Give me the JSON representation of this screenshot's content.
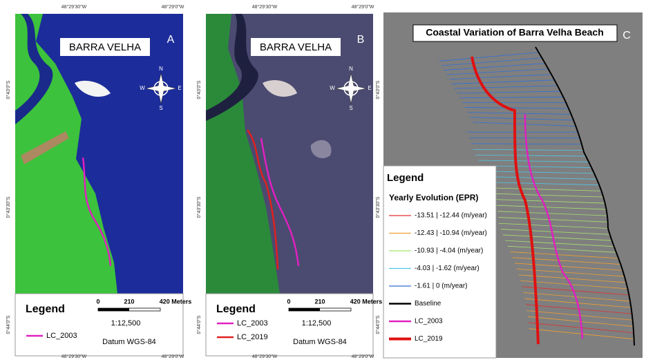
{
  "panels": [
    {
      "label": "A",
      "title": "BARRA VELHA",
      "top_coords": [
        "48°29'30\"W",
        "48°29'0\"W"
      ],
      "bottom_coords": [
        "48°29'30\"W",
        "48°29'0\"W"
      ],
      "left_coords": [
        "0°43'0\"S",
        "0°43'30\"S",
        "0°44'0\"S"
      ],
      "compass": {
        "n": "N",
        "s": "S",
        "e": "E",
        "w": "W"
      },
      "legend": {
        "title": "Legend",
        "items": [
          {
            "name": "LC_2003",
            "color": "#e020c0"
          }
        ]
      },
      "scale": {
        "ticks": [
          "0",
          "210",
          "420 Meters"
        ],
        "ratio": "1:12,500",
        "datum": "Datum WGS-84"
      }
    },
    {
      "label": "B",
      "title": "BARRA VELHA",
      "top_coords": [
        "48°29'30\"W",
        "48°29'0\"W"
      ],
      "bottom_coords": [
        "48°29'30\"W",
        "48°29'0\"W"
      ],
      "left_coords": [
        "0°43'0\"S",
        "0°43'30\"S",
        "0°44'0\"S"
      ],
      "right_coords": [
        "0°43'0\"S",
        "0°43'30\"S",
        "0°44'0\"S"
      ],
      "compass": {
        "n": "N",
        "s": "S",
        "e": "E",
        "w": "W"
      },
      "legend": {
        "title": "Legend",
        "items": [
          {
            "name": "LC_2003",
            "color": "#e020c0"
          },
          {
            "name": "LC_2019",
            "color": "#e02020"
          }
        ]
      },
      "scale": {
        "ticks": [
          "0",
          "210",
          "420 Meters"
        ],
        "ratio": "1:12,500",
        "datum": "Datum WGS-84"
      }
    },
    {
      "label": "C",
      "title": "Coastal Variation of Barra Velha Beach",
      "legend": {
        "title": "Legend",
        "subtitle": "Yearly Evolution (EPR)",
        "items": [
          {
            "name": "-13.51 | -12.44  (m/year)",
            "color": "#e03030"
          },
          {
            "name": "-12.43 | -10.94  (m/year)",
            "color": "#f0a030"
          },
          {
            "name": "-10.93 | -4.04  (m/year)",
            "color": "#a8e070"
          },
          {
            "name": "-4.03 | -1.62  (m/year)",
            "color": "#50c8e8"
          },
          {
            "name": "-1.61 | 0  (m/year)",
            "color": "#3070d8"
          },
          {
            "name": "Baseline",
            "color": "#000000"
          },
          {
            "name": "LC_2003",
            "color": "#e020c0"
          },
          {
            "name": "LC_2019",
            "color": "#e01010"
          }
        ]
      }
    }
  ]
}
